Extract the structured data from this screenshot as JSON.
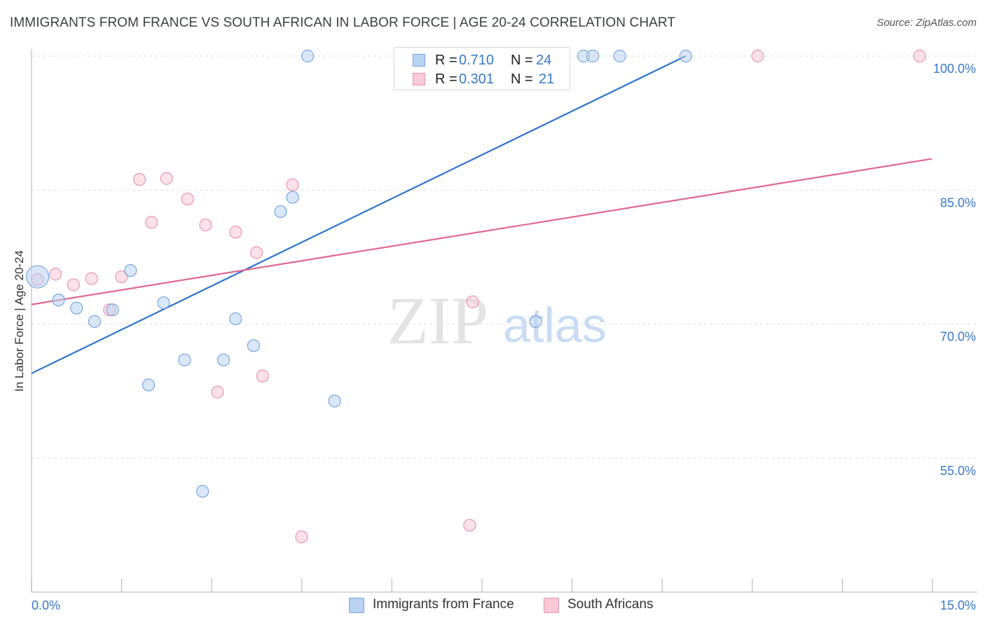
{
  "header": {
    "title": "IMMIGRANTS FROM FRANCE VS SOUTH AFRICAN IN LABOR FORCE | AGE 20-24 CORRELATION CHART",
    "source": "Source: ZipAtlas.com"
  },
  "watermark": {
    "zip": "ZIP",
    "atlas": "atlas"
  },
  "stats_legend": {
    "rows": [
      {
        "r_label": "R = ",
        "r_value": "0.710",
        "n_label": "N = ",
        "n_value": "24"
      },
      {
        "r_label": "R = ",
        "r_value": "0.301",
        "n_label": "N = ",
        "n_value": "21"
      }
    ]
  },
  "colors": {
    "blue_fill": "#b9d3f2",
    "blue_stroke": "#7aa6de",
    "blue_line": "#2f74c8",
    "pink_fill": "#f8c9d6",
    "pink_stroke": "#e996ae",
    "pink_line": "#e0688f",
    "tick_label": "#3a78c9",
    "grid": "#dddddd"
  },
  "chart_data": {
    "type": "scatter",
    "title": "IMMIGRANTS FROM FRANCE VS SOUTH AFRICAN IN LABOR FORCE | AGE 20-24 CORRELATION CHART",
    "xlabel": "",
    "ylabel": "In Labor Force | Age 20-24",
    "xlim": [
      0,
      15
    ],
    "ylim": [
      40,
      101.5
    ],
    "x_tick_labels": [
      "0.0%",
      "15.0%"
    ],
    "y_ticks": [
      55,
      70,
      85,
      100
    ],
    "y_tick_labels": [
      "55.0%",
      "70.0%",
      "85.0%",
      "100.0%"
    ],
    "grid": "horizontal dashed",
    "legend": "bottom-center",
    "series": [
      {
        "name": "Immigrants from France",
        "color": "#7aa6de",
        "points": [
          {
            "x": 0.1,
            "y": 75.3,
            "big": true
          },
          {
            "x": 0.45,
            "y": 72.7
          },
          {
            "x": 0.75,
            "y": 71.8
          },
          {
            "x": 1.05,
            "y": 70.3
          },
          {
            "x": 1.35,
            "y": 71.6
          },
          {
            "x": 1.65,
            "y": 76.0
          },
          {
            "x": 1.95,
            "y": 63.2
          },
          {
            "x": 2.2,
            "y": 72.4
          },
          {
            "x": 2.55,
            "y": 66.0
          },
          {
            "x": 2.85,
            "y": 51.3
          },
          {
            "x": 3.2,
            "y": 66.0
          },
          {
            "x": 3.4,
            "y": 70.6
          },
          {
            "x": 3.7,
            "y": 67.6
          },
          {
            "x": 4.15,
            "y": 82.6
          },
          {
            "x": 4.35,
            "y": 84.2
          },
          {
            "x": 4.6,
            "y": 100.0
          },
          {
            "x": 5.05,
            "y": 61.4
          },
          {
            "x": 6.8,
            "y": 100.0
          },
          {
            "x": 8.4,
            "y": 70.3
          },
          {
            "x": 9.2,
            "y": 100.0
          },
          {
            "x": 9.35,
            "y": 100.0
          },
          {
            "x": 9.8,
            "y": 100.0
          },
          {
            "x": 10.9,
            "y": 100.0
          },
          {
            "x": 6.75,
            "y": 100.0
          }
        ],
        "trend": {
          "x": [
            0,
            10.9
          ],
          "y": [
            64.5,
            100.0
          ]
        }
      },
      {
        "name": "South Africans",
        "color": "#e996ae",
        "points": [
          {
            "x": 0.1,
            "y": 75.0
          },
          {
            "x": 0.4,
            "y": 75.6
          },
          {
            "x": 0.7,
            "y": 74.4
          },
          {
            "x": 1.0,
            "y": 75.1
          },
          {
            "x": 1.3,
            "y": 71.6
          },
          {
            "x": 1.5,
            "y": 75.3
          },
          {
            "x": 1.8,
            "y": 86.2
          },
          {
            "x": 2.0,
            "y": 81.4
          },
          {
            "x": 2.25,
            "y": 86.3
          },
          {
            "x": 2.6,
            "y": 84.0
          },
          {
            "x": 2.9,
            "y": 81.1
          },
          {
            "x": 3.1,
            "y": 62.4
          },
          {
            "x": 3.4,
            "y": 80.3
          },
          {
            "x": 3.75,
            "y": 78.0
          },
          {
            "x": 3.85,
            "y": 64.2
          },
          {
            "x": 4.35,
            "y": 85.6
          },
          {
            "x": 4.5,
            "y": 46.2
          },
          {
            "x": 7.35,
            "y": 72.5
          },
          {
            "x": 7.3,
            "y": 47.5
          },
          {
            "x": 12.1,
            "y": 100.0
          },
          {
            "x": 14.8,
            "y": 100.0
          }
        ],
        "trend": {
          "x": [
            0,
            15
          ],
          "y": [
            72.2,
            88.5
          ]
        }
      }
    ]
  }
}
